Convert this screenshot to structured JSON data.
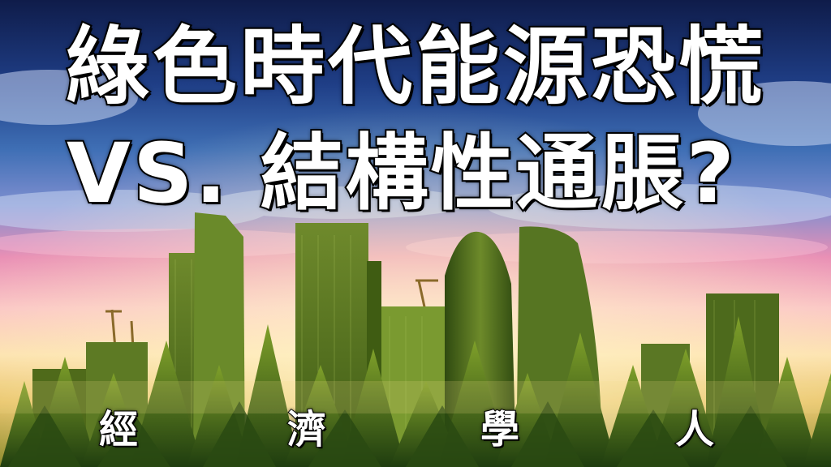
{
  "headline": {
    "line1": "綠色時代能源恐慌",
    "line2": "VS. 結構性通脹?"
  },
  "brand": {
    "chars": [
      "經",
      "濟",
      "學",
      "人"
    ]
  },
  "colors": {
    "sky_top": "#16265e",
    "sky_mid": "#3f6fb5",
    "sunset_pink": "#e98fb5",
    "sunset_glow": "#fde3b0",
    "forest_dark": "#1f3d0f",
    "forest_light": "#7fa02a",
    "building_green": "#5d7a24"
  }
}
